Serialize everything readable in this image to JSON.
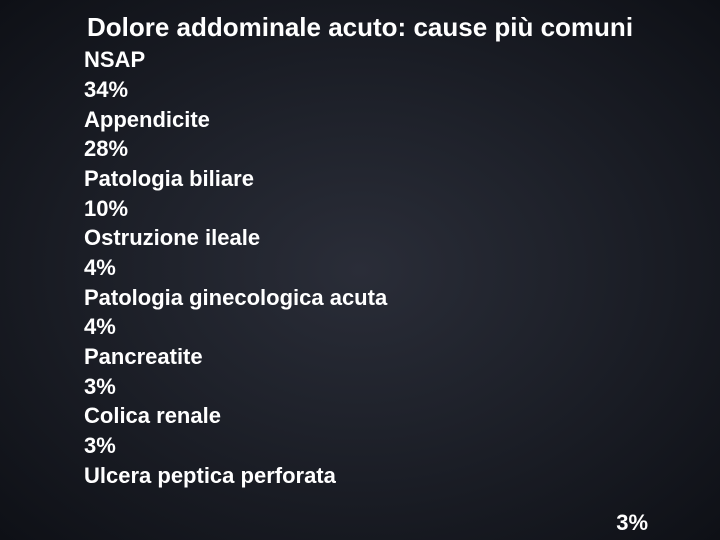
{
  "title": "Dolore addominale acuto: cause più comuni",
  "rows": [
    {
      "label": "NSAP",
      "percent": "34%"
    },
    {
      "label": "Appendicite",
      "percent": "28%"
    },
    {
      "label": "Patologia biliare",
      "percent": "10%"
    },
    {
      "label": "Ostruzione ileale",
      "percent": "4%"
    },
    {
      "label": "Patologia ginecologica acuta",
      "percent": "4%"
    },
    {
      "label": "Pancreatite",
      "percent": "3%"
    },
    {
      "label": "Colica renale",
      "percent": "3%"
    }
  ],
  "lastLabel": "Ulcera peptica perforata",
  "lastPercent": "3%",
  "styling": {
    "background": "radial-gradient(#2a2d38, #0e1016)",
    "textColor": "#ffffff",
    "titleFontSize": 26,
    "bodyFontSize": 22,
    "fontFamily": "Verdana"
  }
}
